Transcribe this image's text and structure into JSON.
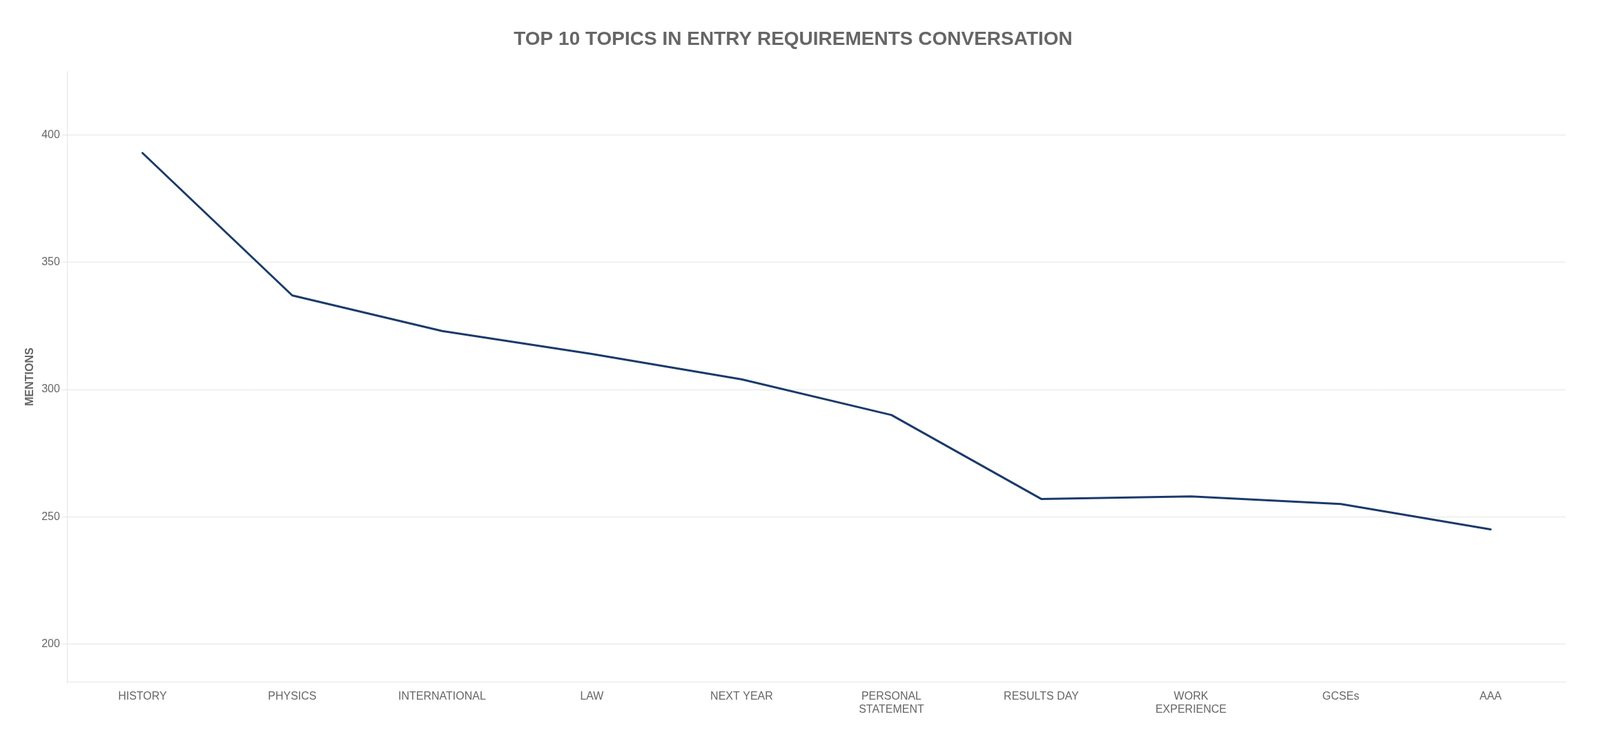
{
  "chart_data": {
    "type": "line",
    "title": "TOP 10 TOPICS IN ENTRY REQUIREMENTS CONVERSATION",
    "categories": [
      "HISTORY",
      "PHYSICS",
      "INTERNATIONAL",
      "LAW",
      "NEXT YEAR",
      "PERSONAL\nSTATEMENT",
      "RESULTS DAY",
      "WORK\nEXPERIENCE",
      "GCSEs",
      "AAA"
    ],
    "values": [
      393,
      337,
      323,
      314,
      304,
      290,
      257,
      258,
      255,
      245
    ],
    "ylabel": "MENTIONS",
    "color": "#1a3a6b",
    "ylim": [
      185,
      425
    ],
    "yticks": [
      200,
      250,
      300,
      350,
      400
    ],
    "grid": true
  }
}
